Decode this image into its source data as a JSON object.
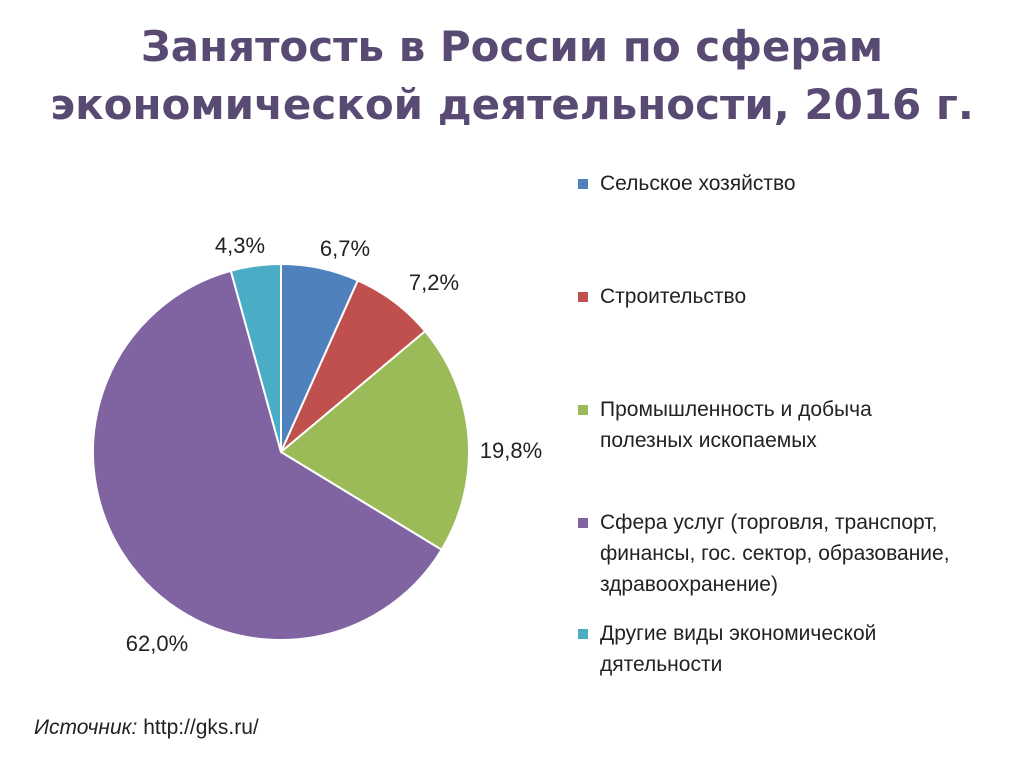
{
  "title_line1": "Занятость в России по сферам",
  "title_line2": "экономической деятельности, 2016 г.",
  "source_label": "Источник:",
  "source_url": "http://gks.ru/",
  "chart_data": {
    "type": "pie",
    "title": "Занятость в России по сферам экономической деятельности, 2016 г.",
    "legend_position": "right",
    "start_angle_deg": 0,
    "direction": "clockwise",
    "slices": [
      {
        "name": "Сельское хозяйство",
        "value": 6.7,
        "label": "6,7%",
        "color": "#4f81bd"
      },
      {
        "name": "Строительство",
        "value": 7.2,
        "label": "7,2%",
        "color": "#c0504d"
      },
      {
        "name": "Промышленность и добыча полезных ископаемых",
        "value": 19.8,
        "label": "19,8%",
        "color": "#9bbb59"
      },
      {
        "name": "Сфера услуг (торговля, транспорт, финансы, гос. сектор, образование, здравоохранение)",
        "value": 62.0,
        "label": "62,0%",
        "color": "#8064a2"
      },
      {
        "name": "Другие виды экономической дятельности",
        "value": 4.3,
        "label": "4,3%",
        "color": "#4bacc6"
      }
    ]
  }
}
